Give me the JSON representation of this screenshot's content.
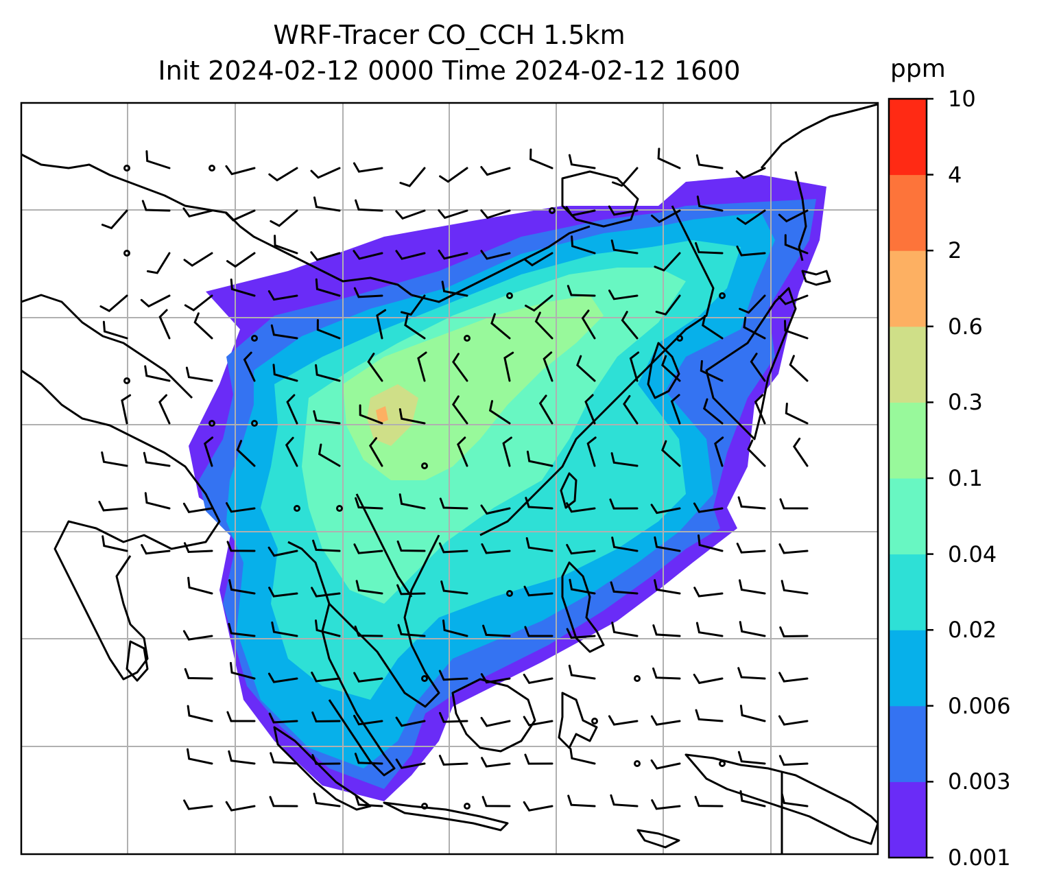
{
  "title": {
    "line1": "WRF-Tracer CO_CCH 1.5km",
    "line2": "Init 2024-02-12 0000 Time 2024-02-12 1600"
  },
  "colorbar": {
    "unit": "ppm",
    "ticks": [
      "0.001",
      "0.003",
      "0.006",
      "0.02",
      "0.04",
      "0.1",
      "0.3",
      "0.6",
      "2",
      "4",
      "10"
    ],
    "colors": [
      "#6a2cf7",
      "#3473f2",
      "#07b0ea",
      "#2ee0d6",
      "#68f7c2",
      "#98f99b",
      "#cfdf88",
      "#fdb062",
      "#fd743a",
      "#ff2a14"
    ]
  },
  "map": {
    "contour_layers": [
      {
        "level": "0.001",
        "color": "#6a2cf7"
      },
      {
        "level": "0.003",
        "color": "#3473f2"
      },
      {
        "level": "0.006",
        "color": "#07b0ea"
      },
      {
        "level": "0.02",
        "color": "#2ee0d6"
      },
      {
        "level": "0.04",
        "color": "#68f7c2"
      },
      {
        "level": "0.1",
        "color": "#98f99b"
      },
      {
        "level": "0.3",
        "color": "#cfdf88"
      },
      {
        "level": "0.6",
        "color": "#fdb062"
      }
    ],
    "gridlines": true,
    "coastline_color": "#000000",
    "wind_barbs": true
  }
}
